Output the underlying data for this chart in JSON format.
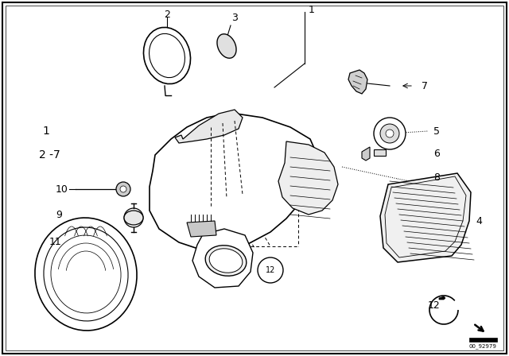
{
  "bg_color": "#ffffff",
  "line_color": "#000000",
  "fig_width": 6.4,
  "fig_height": 4.48,
  "dpi": 100,
  "part_number": "00_92979",
  "fs_label": 9,
  "fs_small": 7,
  "lw_main": 1.0,
  "lw_thin": 0.6,
  "gray_light": "#cccccc",
  "gray_mid": "#999999"
}
